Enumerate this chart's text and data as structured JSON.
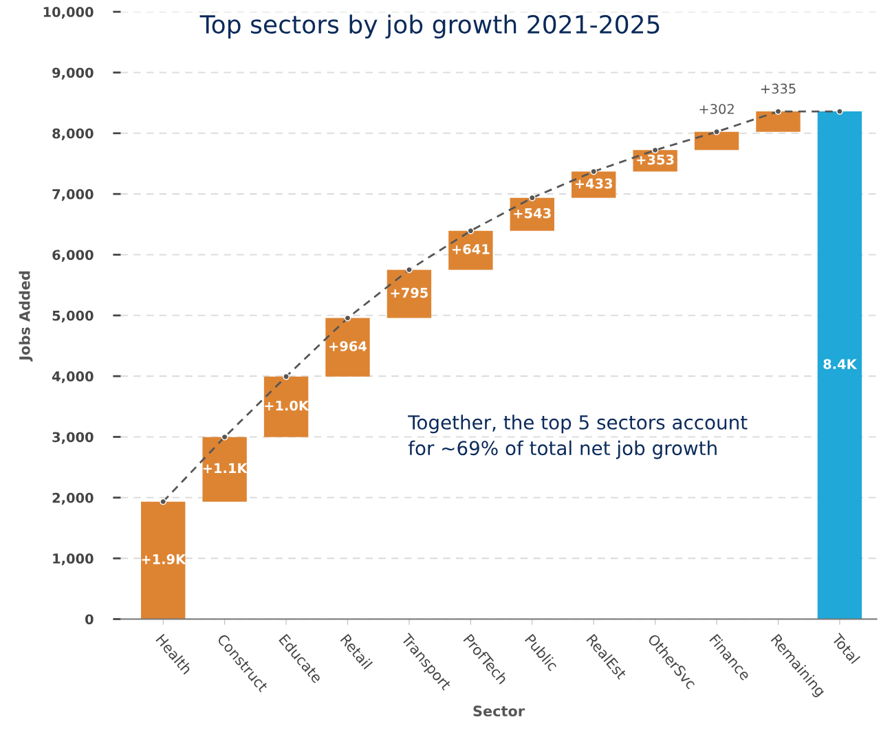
{
  "chart_data": {
    "type": "bar",
    "title": "Top sectors by job growth 2021-2025",
    "xlabel": "Sector",
    "ylabel": "Jobs Added",
    "categories": [
      "Health",
      "Construct",
      "Educate",
      "Retail",
      "Transport",
      "ProfTech",
      "Public",
      "RealEst",
      "OtherSvc",
      "Finance",
      "Remaining",
      "Total"
    ],
    "series": [
      {
        "values": [
          1934,
          1064,
          995,
          964,
          795,
          641,
          543,
          433,
          353,
          302,
          335,
          8359
        ],
        "base": [
          0,
          1934,
          2998,
          3993,
          4957,
          5752,
          6393,
          6936,
          7369,
          7722,
          8024,
          0
        ],
        "colors": [
          "#dd8433",
          "#dd8433",
          "#dd8433",
          "#dd8433",
          "#dd8433",
          "#dd8433",
          "#dd8433",
          "#dd8433",
          "#dd8433",
          "#dd8433",
          "#dd8433",
          "#1fa8d8"
        ],
        "value_labels": [
          "+1.9K",
          "+1.1K",
          "+1.0K",
          "+964",
          "+795",
          "+641",
          "+543",
          "+433",
          "+353",
          "+302",
          "+335",
          "8.4K"
        ]
      },
      {
        "type": "line",
        "color": "#555555",
        "marker": "circle",
        "line_style": "dashed",
        "values": [
          1934,
          2998,
          3993,
          4957,
          5752,
          6393,
          6936,
          7369,
          7722,
          8024,
          8359,
          8359
        ]
      }
    ],
    "ylim": [
      0,
      10000
    ],
    "yticks": [
      0,
      {
        "value": 1000,
        "label": "1,000"
      },
      {
        "value": 2000,
        "label": "2,000"
      },
      {
        "value": 3000,
        "label": "3,000"
      },
      {
        "value": 4000,
        "label": "4,000"
      },
      {
        "value": 5000,
        "label": "5,000"
      },
      {
        "value": 6000,
        "label": "6,000"
      },
      {
        "value": 7000,
        "label": "7,000"
      },
      {
        "value": 8000,
        "label": "8,000"
      },
      {
        "value": 9000,
        "label": "9,000"
      },
      {
        "value": 10000,
        "label": "10,000"
      }
    ],
    "grid": "y",
    "legend": false,
    "annotations": [
      "Together, the top 5 sectors account\nfor ~69% of total net job growth"
    ]
  }
}
